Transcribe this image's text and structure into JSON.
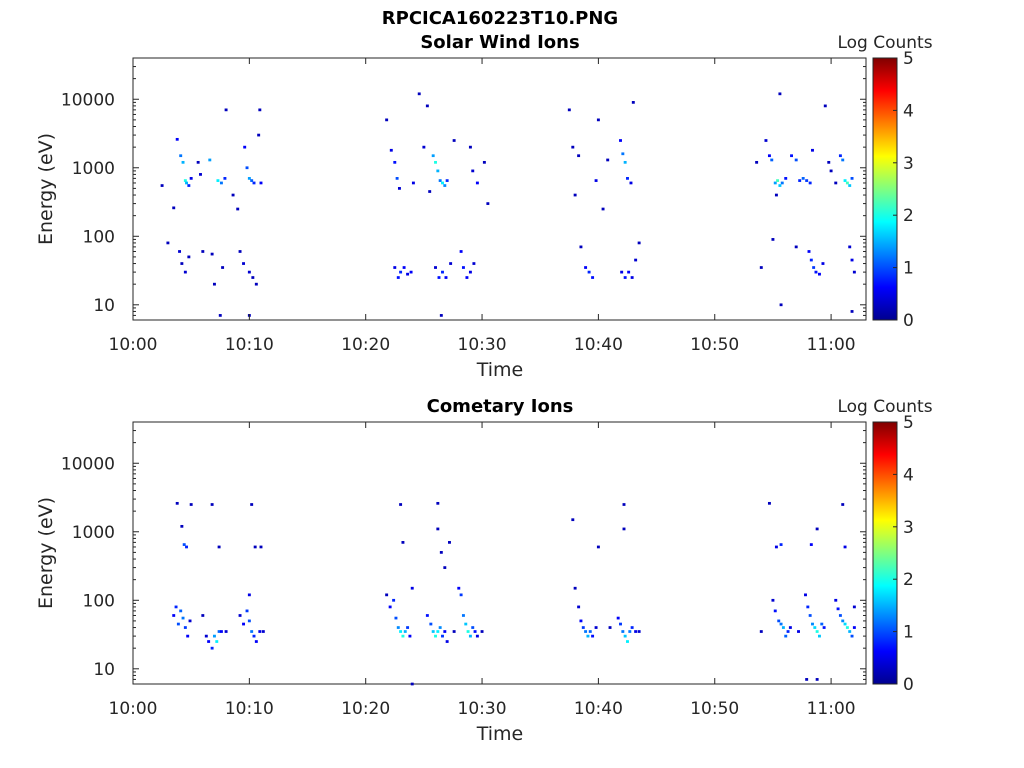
{
  "figure_title": "RPCICA160223T10.PNG",
  "colorbar": {
    "label": "Log Counts",
    "ticks": [
      "0",
      "1",
      "2",
      "3",
      "4",
      "5"
    ],
    "range": [
      0,
      5
    ],
    "colormap": "jet"
  },
  "chart_data": [
    {
      "type": "heatmap",
      "title": "Solar Wind Ions",
      "xlabel": "Time",
      "ylabel": "Energy (eV)",
      "x_ticks": [
        "10:00",
        "10:10",
        "10:20",
        "10:30",
        "10:40",
        "10:50",
        "11:00"
      ],
      "y_ticks": [
        "10",
        "100",
        "1000",
        "10000"
      ],
      "xlim": [
        "10:00",
        "11:03"
      ],
      "ylim": [
        6,
        40000
      ],
      "y_scale": "log",
      "cells": [
        [
          2.5,
          550,
          0.3
        ],
        [
          3.0,
          80,
          0.3
        ],
        [
          3.5,
          260,
          0.3
        ],
        [
          3.8,
          2600,
          0.6
        ],
        [
          4.1,
          1500,
          1.2
        ],
        [
          4.3,
          1200,
          1.5
        ],
        [
          4.5,
          650,
          2.0
        ],
        [
          4.6,
          600,
          1.5
        ],
        [
          4.8,
          550,
          0.8
        ],
        [
          5.0,
          700,
          0.5
        ],
        [
          4.0,
          60,
          0.4
        ],
        [
          4.2,
          40,
          0.3
        ],
        [
          4.5,
          30,
          0.4
        ],
        [
          4.8,
          50,
          0.3
        ],
        [
          5.6,
          1200,
          0.3
        ],
        [
          5.8,
          800,
          0.4
        ],
        [
          6.0,
          60,
          0.3
        ],
        [
          6.6,
          1300,
          1.4
        ],
        [
          6.8,
          55,
          0.3
        ],
        [
          7.0,
          20,
          0.3
        ],
        [
          7.3,
          650,
          1.8
        ],
        [
          7.6,
          600,
          1.2
        ],
        [
          7.9,
          700,
          0.8
        ],
        [
          7.7,
          35,
          0.3
        ],
        [
          7.5,
          7,
          0.3
        ],
        [
          8.0,
          7000,
          0.3
        ],
        [
          8.6,
          400,
          0.3
        ],
        [
          9.0,
          250,
          0.3
        ],
        [
          9.2,
          60,
          0.3
        ],
        [
          9.5,
          40,
          0.4
        ],
        [
          9.6,
          2000,
          0.6
        ],
        [
          9.8,
          1000,
          1.0
        ],
        [
          10.0,
          700,
          1.4
        ],
        [
          10.2,
          650,
          1.1
        ],
        [
          10.4,
          600,
          0.8
        ],
        [
          10.0,
          30,
          0.4
        ],
        [
          10.3,
          25,
          0.3
        ],
        [
          10.0,
          7,
          0.3
        ],
        [
          10.9,
          7000,
          0.3
        ],
        [
          11.0,
          600,
          0.6
        ],
        [
          10.6,
          20,
          0.3
        ],
        [
          10.8,
          3000,
          0.3
        ],
        [
          21.8,
          5000,
          0.3
        ],
        [
          22.2,
          1800,
          0.5
        ],
        [
          22.5,
          1200,
          0.7
        ],
        [
          22.7,
          700,
          1.0
        ],
        [
          22.9,
          500,
          0.4
        ],
        [
          22.5,
          35,
          0.5
        ],
        [
          22.8,
          25,
          0.7
        ],
        [
          23.0,
          30,
          0.8
        ],
        [
          23.3,
          35,
          0.6
        ],
        [
          23.6,
          28,
          0.5
        ],
        [
          23.9,
          30,
          0.6
        ],
        [
          24.1,
          600,
          0.5
        ],
        [
          24.6,
          12000,
          0.3
        ],
        [
          25.0,
          2000,
          0.4
        ],
        [
          25.8,
          1500,
          1.4
        ],
        [
          26.0,
          1200,
          2.0
        ],
        [
          26.2,
          900,
          1.5
        ],
        [
          26.4,
          650,
          1.2
        ],
        [
          26.6,
          600,
          1.8
        ],
        [
          26.8,
          550,
          1.3
        ],
        [
          27.0,
          650,
          0.8
        ],
        [
          26.5,
          7,
          0.3
        ],
        [
          26.0,
          35,
          0.4
        ],
        [
          26.3,
          25,
          0.7
        ],
        [
          26.6,
          30,
          0.8
        ],
        [
          26.9,
          25,
          0.6
        ],
        [
          27.3,
          40,
          0.4
        ],
        [
          27.6,
          2500,
          0.3
        ],
        [
          28.2,
          60,
          0.6
        ],
        [
          28.4,
          35,
          0.7
        ],
        [
          28.7,
          25,
          0.6
        ],
        [
          29.0,
          30,
          0.5
        ],
        [
          29.3,
          40,
          0.4
        ],
        [
          29.0,
          2000,
          0.3
        ],
        [
          29.6,
          600,
          0.6
        ],
        [
          29.2,
          900,
          0.4
        ],
        [
          30.2,
          1200,
          0.3
        ],
        [
          30.5,
          300,
          0.3
        ],
        [
          25.3,
          8000,
          0.3
        ],
        [
          25.5,
          450,
          0.3
        ],
        [
          37.5,
          7000,
          0.3
        ],
        [
          37.8,
          2000,
          0.3
        ],
        [
          38.0,
          400,
          0.3
        ],
        [
          38.3,
          1500,
          0.3
        ],
        [
          38.5,
          70,
          0.3
        ],
        [
          38.9,
          35,
          0.6
        ],
        [
          39.2,
          30,
          0.8
        ],
        [
          39.5,
          25,
          0.7
        ],
        [
          39.8,
          650,
          0.5
        ],
        [
          40.0,
          5000,
          0.3
        ],
        [
          40.4,
          250,
          0.3
        ],
        [
          40.8,
          1300,
          0.3
        ],
        [
          41.9,
          2500,
          0.6
        ],
        [
          42.1,
          1600,
          1.2
        ],
        [
          42.3,
          1200,
          1.5
        ],
        [
          42.5,
          700,
          0.8
        ],
        [
          42.8,
          600,
          0.5
        ],
        [
          42.0,
          30,
          0.5
        ],
        [
          42.3,
          25,
          0.7
        ],
        [
          42.6,
          30,
          0.6
        ],
        [
          42.9,
          25,
          0.5
        ],
        [
          43.2,
          45,
          0.4
        ],
        [
          43.0,
          9000,
          0.3
        ],
        [
          43.5,
          80,
          0.3
        ],
        [
          53.6,
          1200,
          0.3
        ],
        [
          54.0,
          35,
          0.3
        ],
        [
          54.4,
          2500,
          0.4
        ],
        [
          54.7,
          1500,
          0.6
        ],
        [
          54.9,
          1300,
          1.1
        ],
        [
          55.2,
          600,
          1.4
        ],
        [
          55.4,
          650,
          2.2
        ],
        [
          55.6,
          550,
          1.6
        ],
        [
          55.8,
          600,
          1.2
        ],
        [
          56.1,
          700,
          0.7
        ],
        [
          55.0,
          90,
          0.3
        ],
        [
          55.3,
          400,
          0.3
        ],
        [
          55.6,
          12000,
          0.3
        ],
        [
          56.6,
          1500,
          0.7
        ],
        [
          57.0,
          1300,
          1.0
        ],
        [
          57.3,
          650,
          0.8
        ],
        [
          57.6,
          700,
          1.1
        ],
        [
          57.9,
          650,
          0.9
        ],
        [
          58.2,
          600,
          0.8
        ],
        [
          58.4,
          1800,
          0.5
        ],
        [
          58.1,
          60,
          0.6
        ],
        [
          58.3,
          45,
          0.8
        ],
        [
          58.5,
          35,
          0.9
        ],
        [
          58.7,
          30,
          0.7
        ],
        [
          59.0,
          28,
          0.6
        ],
        [
          59.3,
          40,
          0.5
        ],
        [
          57.0,
          70,
          0.3
        ],
        [
          59.5,
          8000,
          0.3
        ],
        [
          59.8,
          1200,
          0.3
        ],
        [
          60.0,
          900,
          0.3
        ],
        [
          60.4,
          600,
          0.3
        ],
        [
          60.8,
          1500,
          0.8
        ],
        [
          61.0,
          1300,
          1.2
        ],
        [
          61.2,
          650,
          1.8
        ],
        [
          61.4,
          600,
          2.2
        ],
        [
          61.6,
          550,
          1.6
        ],
        [
          61.8,
          700,
          1.0
        ],
        [
          61.6,
          70,
          0.4
        ],
        [
          61.8,
          45,
          0.5
        ],
        [
          62.0,
          30,
          0.4
        ],
        [
          61.8,
          8,
          0.3
        ],
        [
          55.7,
          10,
          0.3
        ]
      ]
    },
    {
      "type": "heatmap",
      "title": "Cometary Ions",
      "xlabel": "Time",
      "ylabel": "Energy (eV)",
      "x_ticks": [
        "10:00",
        "10:10",
        "10:20",
        "10:30",
        "10:40",
        "10:50",
        "11:00"
      ],
      "y_ticks": [
        "10",
        "100",
        "1000",
        "10000"
      ],
      "xlim": [
        "10:00",
        "11:03"
      ],
      "ylim": [
        6,
        40000
      ],
      "y_scale": "log",
      "cells": [
        [
          3.8,
          2600,
          0.3
        ],
        [
          4.2,
          1200,
          0.3
        ],
        [
          4.4,
          650,
          1.0
        ],
        [
          4.6,
          600,
          0.8
        ],
        [
          5.0,
          2500,
          0.3
        ],
        [
          6.8,
          2500,
          0.3
        ],
        [
          7.4,
          600,
          0.3
        ],
        [
          10.2,
          2500,
          0.3
        ],
        [
          10.5,
          600,
          0.3
        ],
        [
          11.0,
          600,
          0.3
        ],
        [
          3.5,
          60,
          0.6
        ],
        [
          3.7,
          80,
          0.8
        ],
        [
          3.9,
          45,
          1.0
        ],
        [
          4.1,
          70,
          1.1
        ],
        [
          4.3,
          55,
          1.2
        ],
        [
          4.5,
          40,
          0.9
        ],
        [
          4.7,
          30,
          0.6
        ],
        [
          4.9,
          50,
          0.4
        ],
        [
          6.3,
          30,
          0.4
        ],
        [
          6.5,
          25,
          0.6
        ],
        [
          6.8,
          20,
          0.8
        ],
        [
          7.0,
          30,
          1.4
        ],
        [
          7.2,
          25,
          1.8
        ],
        [
          7.4,
          35,
          1.1
        ],
        [
          7.6,
          35,
          0.6
        ],
        [
          8.0,
          35,
          0.4
        ],
        [
          6.0,
          60,
          0.3
        ],
        [
          9.2,
          60,
          0.4
        ],
        [
          9.5,
          45,
          0.6
        ],
        [
          9.8,
          70,
          0.9
        ],
        [
          10.0,
          50,
          1.0
        ],
        [
          10.2,
          35,
          1.2
        ],
        [
          10.4,
          30,
          0.8
        ],
        [
          10.6,
          25,
          0.6
        ],
        [
          10.9,
          35,
          0.5
        ],
        [
          11.2,
          35,
          0.4
        ],
        [
          10.0,
          120,
          0.5
        ],
        [
          21.8,
          120,
          0.3
        ],
        [
          22.1,
          80,
          0.6
        ],
        [
          22.4,
          100,
          0.8
        ],
        [
          22.6,
          55,
          1.0
        ],
        [
          22.8,
          40,
          1.3
        ],
        [
          23.0,
          35,
          1.8
        ],
        [
          23.2,
          30,
          2.0
        ],
        [
          23.4,
          35,
          1.5
        ],
        [
          23.6,
          40,
          0.9
        ],
        [
          23.8,
          30,
          0.6
        ],
        [
          23.0,
          2500,
          0.3
        ],
        [
          23.2,
          700,
          0.3
        ],
        [
          24.0,
          150,
          0.5
        ],
        [
          24.0,
          6,
          0.3
        ],
        [
          25.3,
          60,
          0.7
        ],
        [
          25.6,
          45,
          1.0
        ],
        [
          25.8,
          35,
          1.6
        ],
        [
          26.0,
          30,
          2.0
        ],
        [
          26.2,
          35,
          1.8
        ],
        [
          26.4,
          40,
          1.3
        ],
        [
          26.6,
          30,
          0.9
        ],
        [
          26.8,
          35,
          0.6
        ],
        [
          27.0,
          25,
          0.5
        ],
        [
          26.2,
          2600,
          0.3
        ],
        [
          26.2,
          1100,
          0.3
        ],
        [
          26.5,
          500,
          0.3
        ],
        [
          26.8,
          300,
          0.3
        ],
        [
          27.2,
          700,
          0.3
        ],
        [
          28.0,
          150,
          0.6
        ],
        [
          28.2,
          120,
          0.9
        ],
        [
          28.4,
          60,
          1.2
        ],
        [
          28.6,
          45,
          1.6
        ],
        [
          28.8,
          35,
          2.0
        ],
        [
          29.0,
          30,
          1.5
        ],
        [
          29.2,
          40,
          1.0
        ],
        [
          29.4,
          35,
          0.7
        ],
        [
          29.6,
          30,
          0.5
        ],
        [
          27.6,
          35,
          0.3
        ],
        [
          30.0,
          35,
          0.3
        ],
        [
          38.0,
          150,
          0.3
        ],
        [
          38.3,
          80,
          0.4
        ],
        [
          38.5,
          50,
          0.6
        ],
        [
          38.7,
          40,
          0.9
        ],
        [
          38.9,
          35,
          1.2
        ],
        [
          39.1,
          30,
          1.5
        ],
        [
          39.3,
          35,
          1.1
        ],
        [
          39.5,
          30,
          0.7
        ],
        [
          39.8,
          40,
          0.4
        ],
        [
          37.8,
          1500,
          0.3
        ],
        [
          40.0,
          600,
          0.3
        ],
        [
          41.7,
          55,
          0.6
        ],
        [
          41.9,
          45,
          0.9
        ],
        [
          42.1,
          35,
          1.2
        ],
        [
          42.3,
          30,
          1.6
        ],
        [
          42.5,
          25,
          1.8
        ],
        [
          42.7,
          35,
          1.2
        ],
        [
          42.9,
          40,
          0.8
        ],
        [
          43.2,
          35,
          0.5
        ],
        [
          43.5,
          35,
          0.4
        ],
        [
          42.2,
          2500,
          0.3
        ],
        [
          42.2,
          1100,
          0.3
        ],
        [
          41.0,
          40,
          0.3
        ],
        [
          54.0,
          35,
          0.3
        ],
        [
          54.7,
          2600,
          0.3
        ],
        [
          55.0,
          100,
          0.4
        ],
        [
          55.2,
          70,
          0.7
        ],
        [
          55.5,
          50,
          1.0
        ],
        [
          55.7,
          45,
          1.2
        ],
        [
          55.9,
          40,
          1.5
        ],
        [
          56.1,
          30,
          1.1
        ],
        [
          56.3,
          35,
          0.8
        ],
        [
          56.5,
          40,
          0.5
        ],
        [
          55.3,
          600,
          0.5
        ],
        [
          55.7,
          650,
          0.8
        ],
        [
          57.8,
          120,
          0.5
        ],
        [
          58.0,
          80,
          0.8
        ],
        [
          58.2,
          60,
          1.0
        ],
        [
          58.4,
          45,
          1.3
        ],
        [
          58.6,
          40,
          1.7
        ],
        [
          58.8,
          35,
          2.0
        ],
        [
          59.0,
          30,
          1.6
        ],
        [
          59.2,
          45,
          1.1
        ],
        [
          59.4,
          40,
          0.7
        ],
        [
          57.2,
          35,
          0.5
        ],
        [
          58.3,
          650,
          0.6
        ],
        [
          58.8,
          7,
          0.3
        ],
        [
          57.9,
          7,
          0.3
        ],
        [
          58.8,
          1100,
          0.3
        ],
        [
          60.4,
          100,
          0.5
        ],
        [
          60.6,
          75,
          0.7
        ],
        [
          60.8,
          60,
          1.0
        ],
        [
          61.0,
          50,
          1.3
        ],
        [
          61.2,
          45,
          1.7
        ],
        [
          61.4,
          40,
          2.0
        ],
        [
          61.6,
          35,
          1.5
        ],
        [
          61.8,
          30,
          1.0
        ],
        [
          62.0,
          40,
          0.6
        ],
        [
          61.0,
          2500,
          0.3
        ],
        [
          61.2,
          600,
          0.5
        ],
        [
          62.0,
          80,
          0.4
        ]
      ]
    }
  ]
}
